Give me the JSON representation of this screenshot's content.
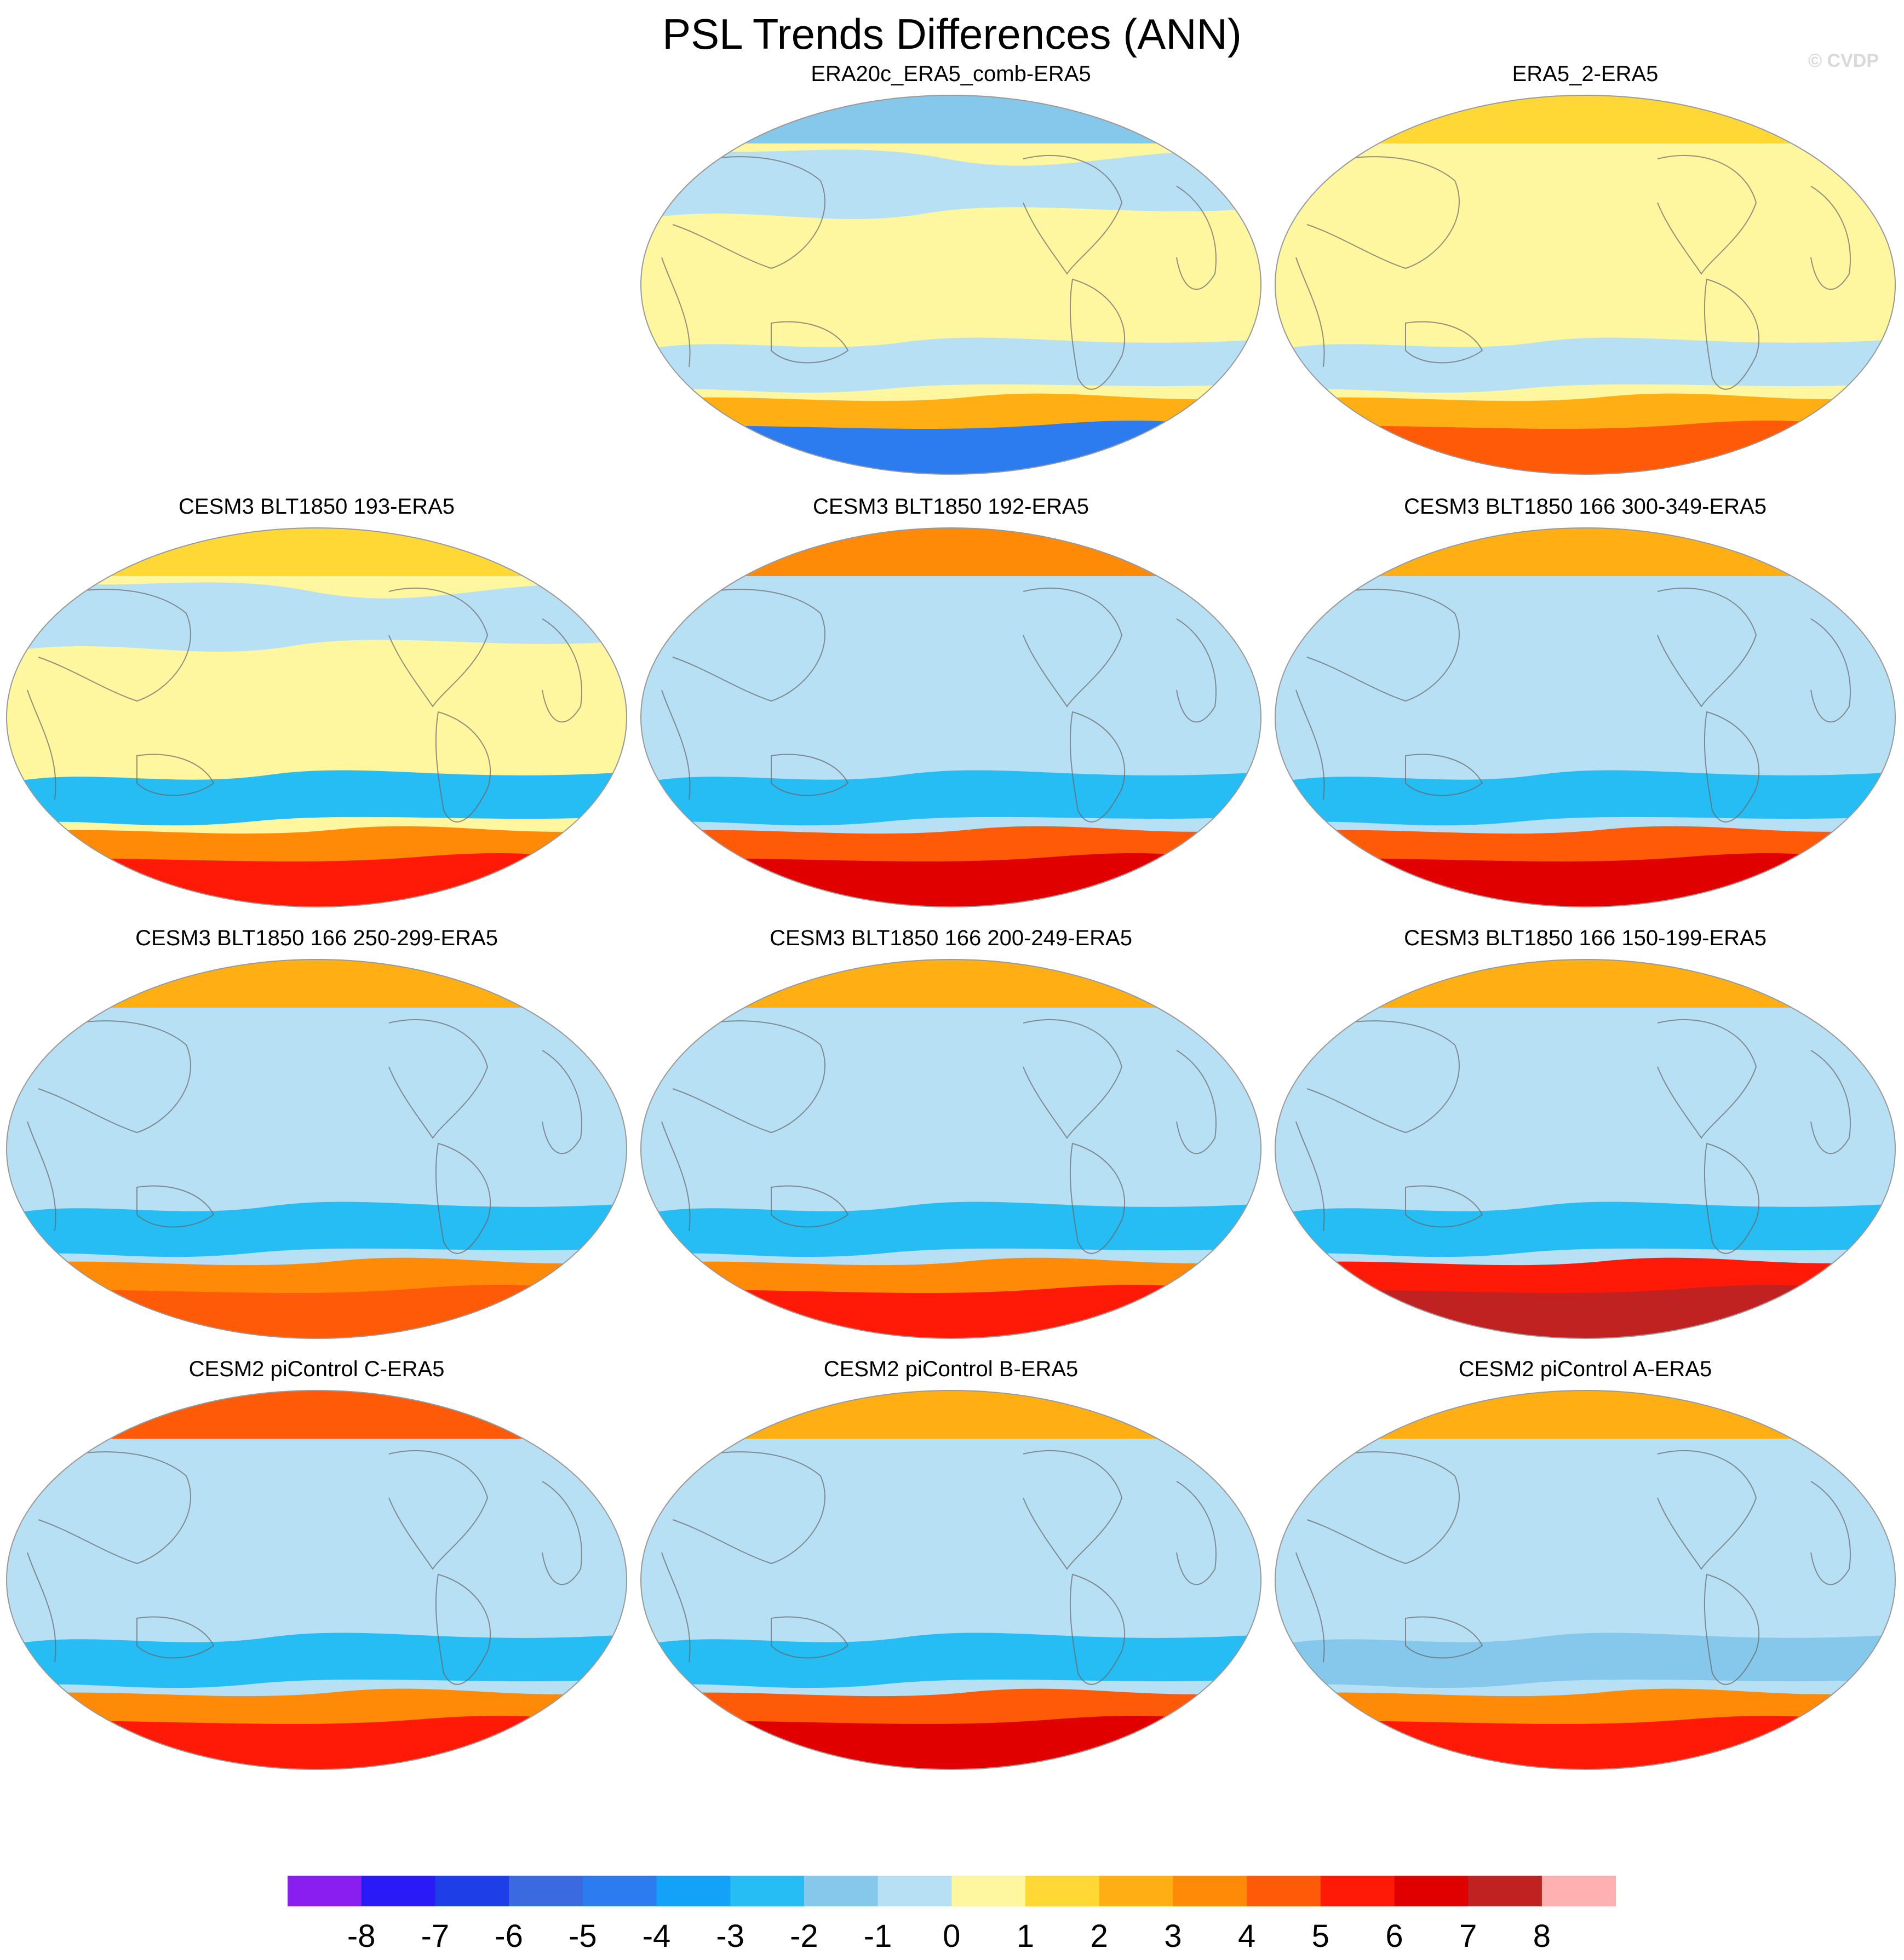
{
  "title": "PSL Trends Differences (ANN)",
  "watermark": "© CVDP",
  "colors": {
    "levels": [
      "#8a1ef0",
      "#2a1af8",
      "#1e3fe8",
      "#3a6ae0",
      "#2c7cf0",
      "#14a2f8",
      "#26bcf4",
      "#86c8ec",
      "#b8e0f4",
      "#fff6a0",
      "#ffd836",
      "#ffae14",
      "#ff8a08",
      "#ff5a08",
      "#ff1a08",
      "#e00000",
      "#c02222",
      "#ffb0b0"
    ],
    "land_outline": "#666666"
  },
  "colorbar": {
    "tick_labels": [
      "-8",
      "-7",
      "-6",
      "-5",
      "-4",
      "-3",
      "-2",
      "-1",
      "0",
      "1",
      "2",
      "3",
      "4",
      "5",
      "6",
      "7",
      "8"
    ]
  },
  "chart_data": {
    "type": "heatmap",
    "projection": "global map (Robinson-like), Pacific-centred",
    "variable": "PSL trend difference",
    "color_levels": [
      -8,
      -7,
      -6,
      -5,
      -4,
      -3,
      -2,
      -1,
      0,
      1,
      2,
      3,
      4,
      5,
      6,
      7,
      8
    ],
    "panels": [
      {
        "title": "ERA20c_ERA5_comb-ERA5",
        "south_ring": -5,
        "southern_ocean_band": 2,
        "midlat_south": -1,
        "tropics": 0,
        "midlat_north": -1,
        "north_ring": -2
      },
      {
        "title": "ERA5_2-ERA5",
        "south_ring": 4,
        "southern_ocean_band": 2,
        "midlat_south": -1,
        "tropics": 0,
        "midlat_north": 0,
        "north_ring": 1
      },
      {
        "title": "CESM3 BLT1850 193-ERA5",
        "south_ring": 5,
        "southern_ocean_band": 3,
        "midlat_south": -3,
        "tropics": 0,
        "midlat_north": -1,
        "north_ring": 1
      },
      {
        "title": "CESM3 BLT1850 192-ERA5",
        "south_ring": 6,
        "southern_ocean_band": 4,
        "midlat_south": -3,
        "tropics": -1,
        "midlat_north": -1,
        "north_ring": 3
      },
      {
        "title": "CESM3 BLT1850 166 300-349-ERA5",
        "south_ring": 6,
        "southern_ocean_band": 4,
        "midlat_south": -3,
        "tropics": -1,
        "midlat_north": -1,
        "north_ring": 2
      },
      {
        "title": "CESM3 BLT1850 166 250-299-ERA5",
        "south_ring": 4,
        "southern_ocean_band": 3,
        "midlat_south": -3,
        "tropics": -1,
        "midlat_north": -1,
        "north_ring": 2
      },
      {
        "title": "CESM3 BLT1850 166 200-249-ERA5",
        "south_ring": 5,
        "southern_ocean_band": 3,
        "midlat_south": -3,
        "tropics": -1,
        "midlat_north": -1,
        "north_ring": 2
      },
      {
        "title": "CESM3 BLT1850 166 150-199-ERA5",
        "south_ring": 7,
        "southern_ocean_band": 5,
        "midlat_south": -3,
        "tropics": -1,
        "midlat_north": -1,
        "north_ring": 2
      },
      {
        "title": "CESM2 piControl C-ERA5",
        "south_ring": 5,
        "southern_ocean_band": 3,
        "midlat_south": -3,
        "tropics": -1,
        "midlat_north": -1,
        "north_ring": 4
      },
      {
        "title": "CESM2 piControl B-ERA5",
        "south_ring": 6,
        "southern_ocean_band": 4,
        "midlat_south": -3,
        "tropics": -1,
        "midlat_north": -1,
        "north_ring": 2
      },
      {
        "title": "CESM2 piControl A-ERA5",
        "south_ring": 5,
        "southern_ocean_band": 3,
        "midlat_south": -2,
        "tropics": -1,
        "midlat_north": -1,
        "north_ring": 2
      }
    ]
  }
}
